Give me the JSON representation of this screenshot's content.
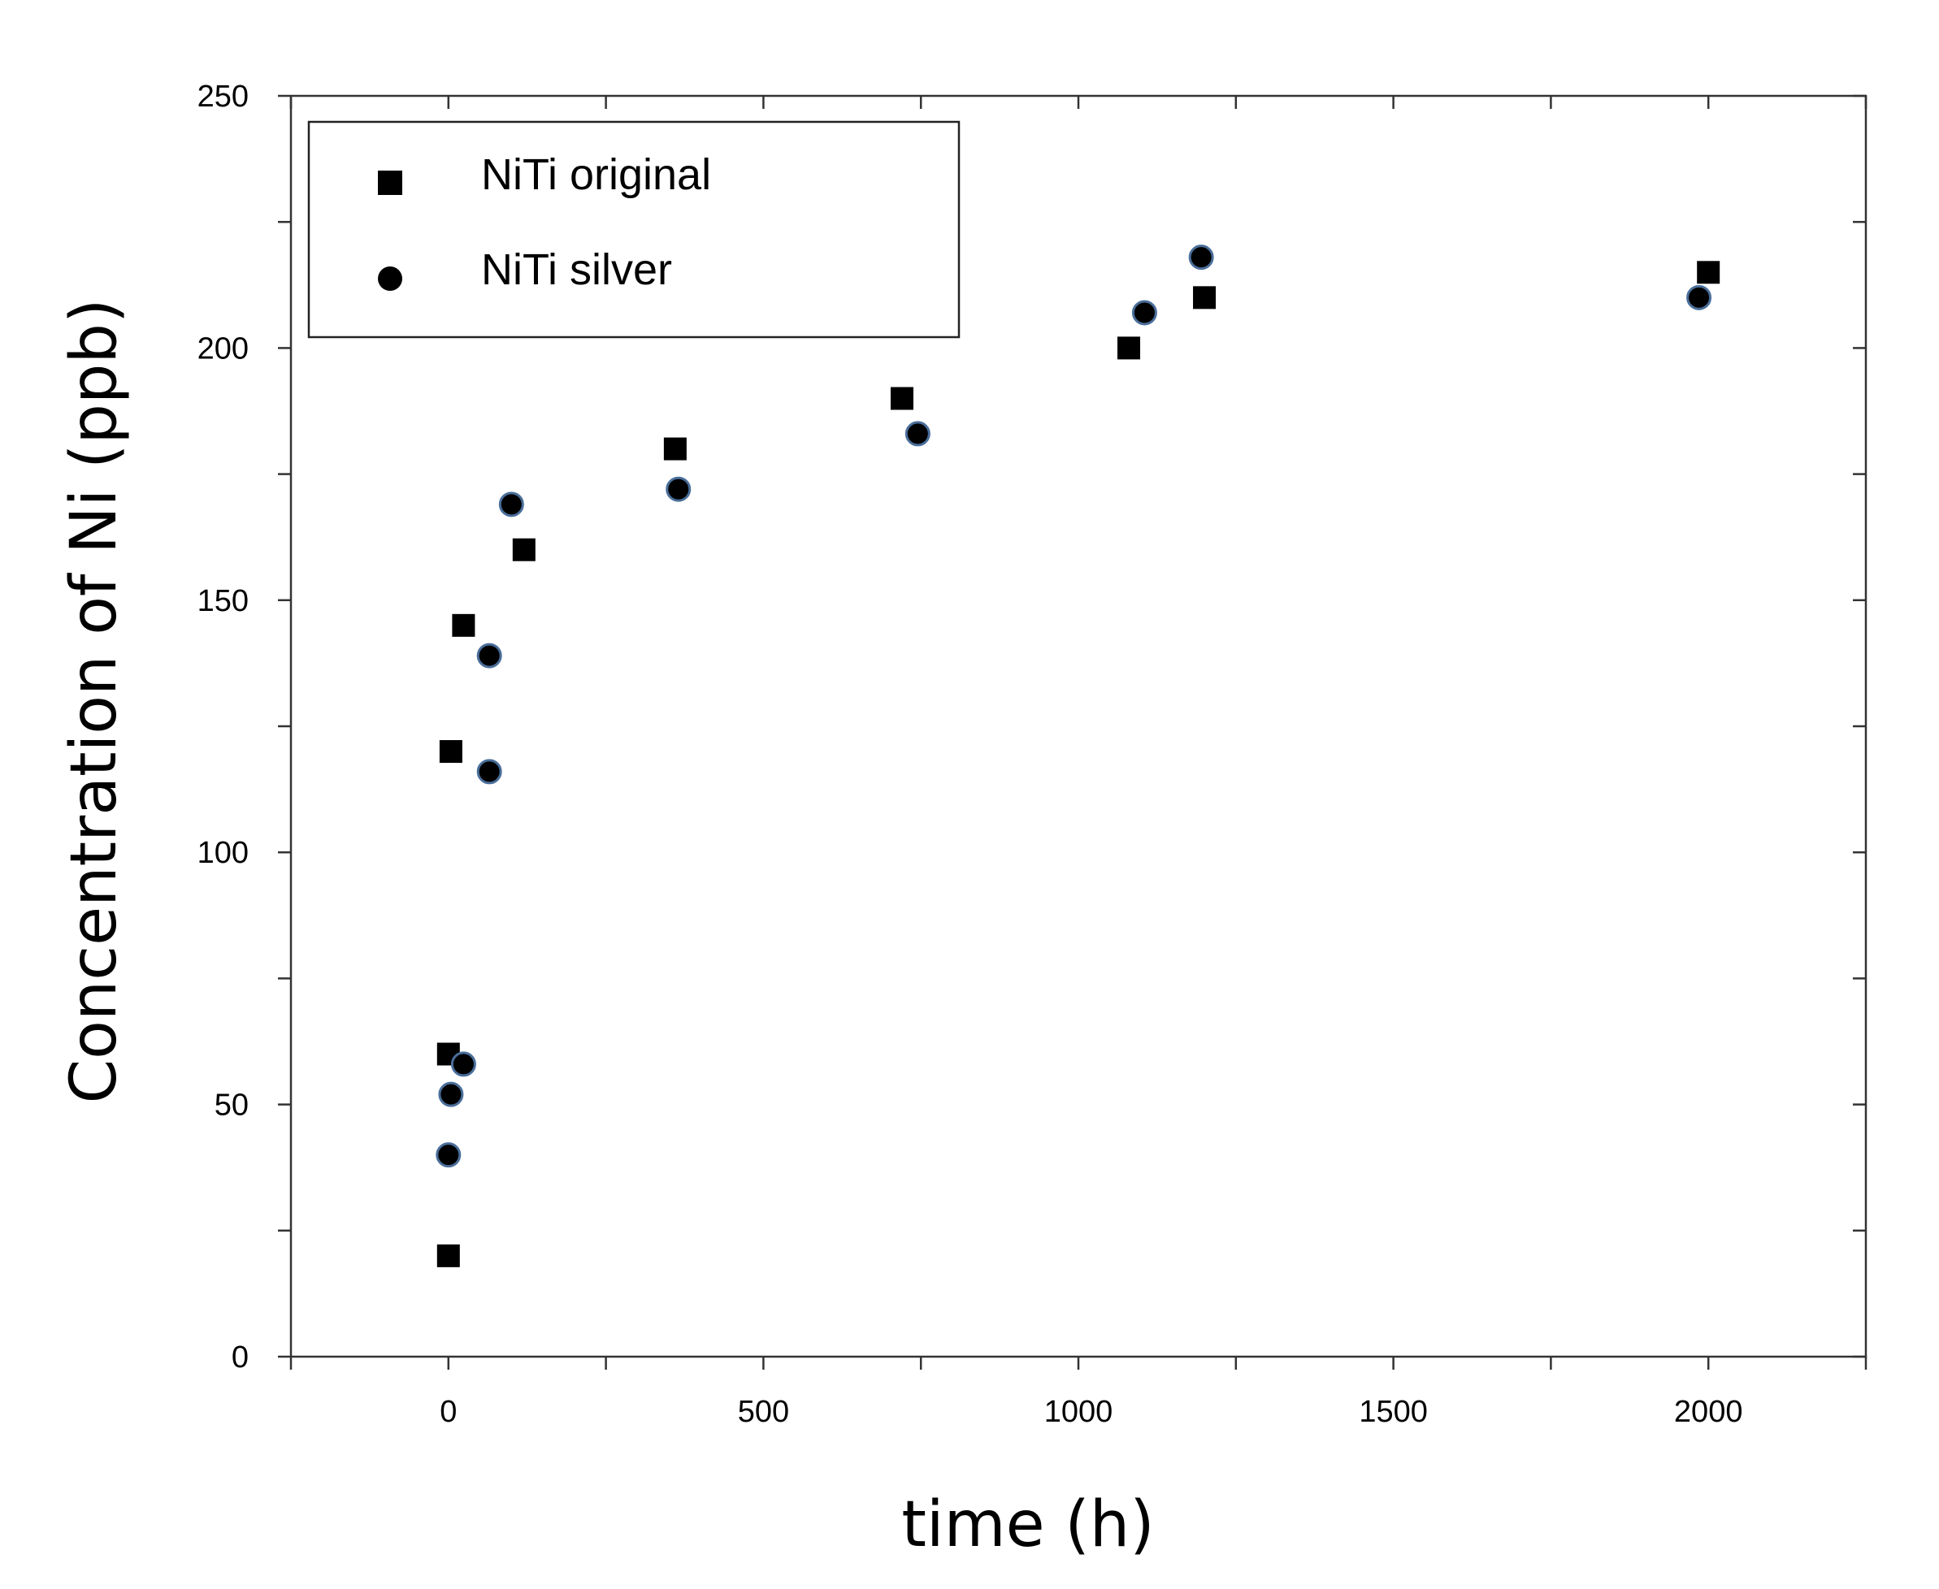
{
  "chart_data": {
    "type": "scatter",
    "title": "",
    "xlabel": "time (h)",
    "ylabel": "Concentration of Ni (ppb)",
    "xlim": [
      -250,
      2250
    ],
    "ylim": [
      0,
      250
    ],
    "xticks": [
      0,
      500,
      1000,
      1500,
      2000
    ],
    "yticks": [
      0,
      50,
      100,
      150,
      200,
      250
    ],
    "x_minor_step": 250,
    "y_minor_step": 25,
    "grid": false,
    "legend_position": "top-left",
    "series": [
      {
        "name": "NiTi original",
        "marker": "square",
        "color": "#000000",
        "points": [
          {
            "x": 0,
            "y": 20
          },
          {
            "x": 0,
            "y": 60
          },
          {
            "x": 4,
            "y": 120
          },
          {
            "x": 24,
            "y": 145
          },
          {
            "x": 120,
            "y": 160
          },
          {
            "x": 360,
            "y": 180
          },
          {
            "x": 720,
            "y": 190
          },
          {
            "x": 1080,
            "y": 200
          },
          {
            "x": 1200,
            "y": 210
          },
          {
            "x": 2000,
            "y": 215
          }
        ]
      },
      {
        "name": "NiTi silver",
        "marker": "circle",
        "color": "#000000",
        "edge_color": "#4a6e9a",
        "points": [
          {
            "x": 0,
            "y": 40
          },
          {
            "x": 4,
            "y": 52
          },
          {
            "x": 24,
            "y": 58
          },
          {
            "x": 65,
            "y": 116
          },
          {
            "x": 65,
            "y": 139
          },
          {
            "x": 100,
            "y": 169
          },
          {
            "x": 365,
            "y": 172
          },
          {
            "x": 745,
            "y": 183
          },
          {
            "x": 1105,
            "y": 207
          },
          {
            "x": 1195,
            "y": 218
          },
          {
            "x": 1985,
            "y": 210
          }
        ]
      }
    ]
  }
}
